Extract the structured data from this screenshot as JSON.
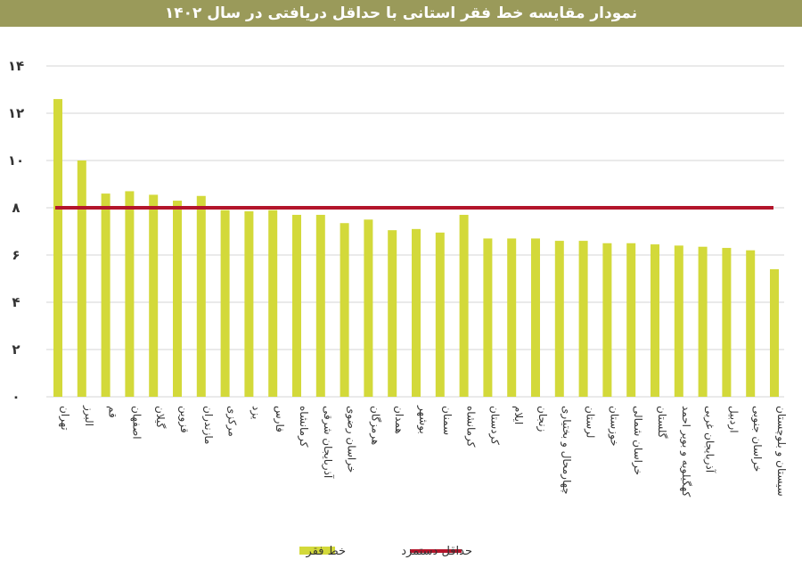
{
  "chart_data": {
    "type": "bar",
    "title": "نمودار مقایسه خط فقر استانی با حداقل دریافتی در سال ۱۴۰۲",
    "categories": [
      "تهران",
      "البرز",
      "قم",
      "اصفهان",
      "گیلان",
      "قزوین",
      "مازندران",
      "مرکزی",
      "یزد",
      "فارس",
      "کرمانشاه",
      "آذربایجان شرقی",
      "خراسان رضوی",
      "هرمزگان",
      "همدان",
      "بوشهر",
      "سمنان",
      "کرمانشاه",
      "کردستان",
      "ایلام",
      "زنجان",
      "چهارمحال و بختیاری",
      "لرستان",
      "خوزستان",
      "خراسان شمالی",
      "گلستان",
      "کهگیلویه و بویر احمد",
      "آذربایجان غربی",
      "اردبیل",
      "خراسان جنوبی",
      "سیستان و بلوچستان"
    ],
    "series": [
      {
        "name": "خط فقر",
        "type": "bar",
        "color": "#d3d93a",
        "values": [
          12.6,
          10.0,
          8.6,
          8.7,
          8.55,
          8.3,
          8.5,
          7.9,
          7.85,
          7.9,
          7.7,
          7.7,
          7.35,
          7.5,
          7.05,
          7.1,
          6.95,
          7.7,
          6.7,
          6.7,
          6.7,
          6.6,
          6.6,
          6.5,
          6.5,
          6.45,
          6.4,
          6.35,
          6.3,
          6.2,
          5.4
        ]
      },
      {
        "name": "حداقل دستمزد",
        "type": "line",
        "color": "#b3152b",
        "value": 8.0
      }
    ],
    "yticks": [
      "۰",
      "۲",
      "۴",
      "۶",
      "۸",
      "۱۰",
      "۱۲",
      "۱۴"
    ],
    "ylim": [
      0,
      14
    ],
    "grid": true,
    "legend": "bottom"
  }
}
